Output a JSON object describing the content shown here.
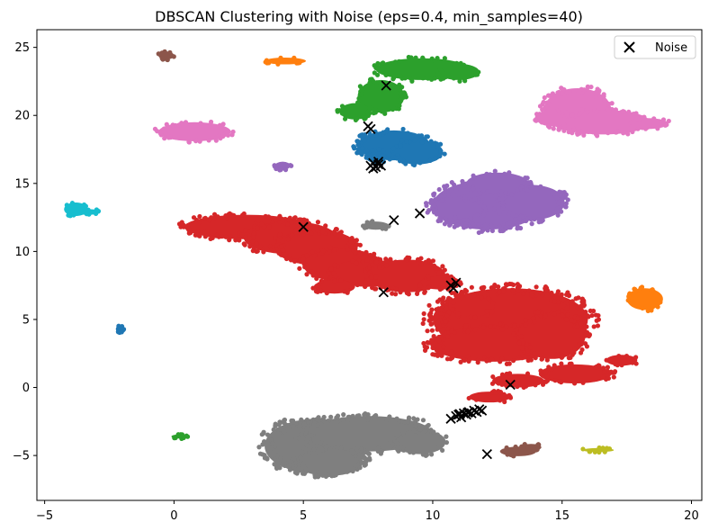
{
  "chart_data": {
    "type": "scatter",
    "title": "DBSCAN Clustering with Noise (eps=0.4, min_samples=40)",
    "xlabel": "",
    "ylabel": "",
    "xlim": [
      -5.3,
      20.4
    ],
    "ylim": [
      -8.3,
      26.3
    ],
    "x_ticks": [
      -5,
      0,
      5,
      10,
      15,
      20
    ],
    "y_ticks": [
      -5,
      0,
      5,
      10,
      15,
      20,
      25
    ],
    "grid": false,
    "legend": {
      "position": "top-right",
      "entries": [
        "Noise"
      ]
    },
    "colors": {
      "tab_blue": "#1f77b4",
      "tab_orange": "#ff7f0e",
      "tab_green": "#2ca02c",
      "tab_red": "#d62728",
      "tab_purple": "#9467bd",
      "tab_brown": "#8c564b",
      "tab_pink": "#e377c2",
      "tab_gray": "#7f7f7f",
      "tab_olive": "#bcbd22",
      "tab_cyan": "#17becf",
      "noise": "#000000"
    },
    "clusters": [
      {
        "color": "#1f77b4",
        "regions": [
          {
            "cx": 8.5,
            "cy": 17.8,
            "rx": 1.4,
            "ry": 1.1
          },
          {
            "cx": 9.4,
            "cy": 17.3,
            "rx": 1.0,
            "ry": 0.9
          },
          {
            "cx": 7.8,
            "cy": 17.0,
            "rx": 0.4,
            "ry": 0.5
          },
          {
            "cx": -2.1,
            "cy": 4.3,
            "rx": 0.15,
            "ry": 0.25
          }
        ]
      },
      {
        "color": "#ff7f0e",
        "regions": [
          {
            "cx": 4.3,
            "cy": 24.0,
            "rx": 0.8,
            "ry": 0.25
          },
          {
            "cx": 18.2,
            "cy": 6.5,
            "rx": 0.7,
            "ry": 0.8
          }
        ]
      },
      {
        "color": "#2ca02c",
        "regions": [
          {
            "cx": 9.6,
            "cy": 23.4,
            "rx": 1.8,
            "ry": 0.8
          },
          {
            "cx": 11.0,
            "cy": 23.2,
            "rx": 0.8,
            "ry": 0.6
          },
          {
            "cx": 8.0,
            "cy": 21.4,
            "rx": 0.9,
            "ry": 1.2
          },
          {
            "cx": 7.0,
            "cy": 20.3,
            "rx": 0.6,
            "ry": 0.6
          },
          {
            "cx": 0.2,
            "cy": -3.6,
            "rx": 0.3,
            "ry": 0.15
          }
        ]
      },
      {
        "color": "#d62728",
        "regions": [
          {
            "cx": 2.8,
            "cy": 11.8,
            "rx": 2.4,
            "ry": 0.9
          },
          {
            "cx": 4.5,
            "cy": 11.0,
            "rx": 1.8,
            "ry": 1.2
          },
          {
            "cx": 5.5,
            "cy": 10.3,
            "rx": 1.6,
            "ry": 1.3
          },
          {
            "cx": 6.5,
            "cy": 9.0,
            "rx": 1.5,
            "ry": 1.2
          },
          {
            "cx": 7.5,
            "cy": 8.4,
            "rx": 1.5,
            "ry": 1.0
          },
          {
            "cx": 9.0,
            "cy": 8.2,
            "rx": 1.5,
            "ry": 1.2
          },
          {
            "cx": 10.3,
            "cy": 7.7,
            "rx": 0.8,
            "ry": 0.5
          },
          {
            "cx": 6.2,
            "cy": 7.4,
            "rx": 0.8,
            "ry": 0.5
          },
          {
            "cx": 13.0,
            "cy": 5.0,
            "rx": 3.0,
            "ry": 2.3
          },
          {
            "cx": 12.4,
            "cy": 3.2,
            "rx": 2.5,
            "ry": 1.3
          },
          {
            "cx": 14.6,
            "cy": 3.8,
            "rx": 1.3,
            "ry": 1.7
          },
          {
            "cx": 11.5,
            "cy": 6.0,
            "rx": 0.9,
            "ry": 0.8
          },
          {
            "cx": 15.5,
            "cy": 1.0,
            "rx": 1.4,
            "ry": 0.7
          },
          {
            "cx": 17.3,
            "cy": 2.0,
            "rx": 0.6,
            "ry": 0.4
          },
          {
            "cx": 13.3,
            "cy": 0.5,
            "rx": 1.0,
            "ry": 0.5
          },
          {
            "cx": 12.2,
            "cy": -0.7,
            "rx": 0.8,
            "ry": 0.4
          }
        ]
      },
      {
        "color": "#9467bd",
        "regions": [
          {
            "cx": 12.1,
            "cy": 13.4,
            "rx": 2.1,
            "ry": 1.8
          },
          {
            "cx": 13.8,
            "cy": 13.6,
            "rx": 1.3,
            "ry": 1.3
          },
          {
            "cx": 11.0,
            "cy": 13.2,
            "rx": 1.1,
            "ry": 0.8
          },
          {
            "cx": 12.5,
            "cy": 15.0,
            "rx": 1.2,
            "ry": 0.8
          },
          {
            "cx": 4.2,
            "cy": 16.3,
            "rx": 0.3,
            "ry": 0.3
          }
        ]
      },
      {
        "color": "#8c564b",
        "regions": [
          {
            "cx": -0.3,
            "cy": 24.4,
            "rx": 0.3,
            "ry": 0.3
          },
          {
            "cx": 13.3,
            "cy": -4.7,
            "rx": 0.7,
            "ry": 0.35
          },
          {
            "cx": 13.8,
            "cy": -4.4,
            "rx": 0.4,
            "ry": 0.25
          }
        ]
      },
      {
        "color": "#e377c2",
        "regions": [
          {
            "cx": 0.8,
            "cy": 18.8,
            "rx": 1.4,
            "ry": 0.7
          },
          {
            "cx": 15.6,
            "cy": 20.4,
            "rx": 1.3,
            "ry": 1.6
          },
          {
            "cx": 16.6,
            "cy": 19.5,
            "rx": 1.8,
            "ry": 0.9
          },
          {
            "cx": 18.3,
            "cy": 19.4,
            "rx": 0.8,
            "ry": 0.4
          },
          {
            "cx": 14.6,
            "cy": 19.8,
            "rx": 0.6,
            "ry": 0.6
          }
        ]
      },
      {
        "color": "#7f7f7f",
        "regions": [
          {
            "cx": 7.8,
            "cy": 11.9,
            "rx": 0.5,
            "ry": 0.3
          },
          {
            "cx": 5.5,
            "cy": -4.3,
            "rx": 2.0,
            "ry": 2.0
          },
          {
            "cx": 7.5,
            "cy": -3.4,
            "rx": 2.5,
            "ry": 1.3
          },
          {
            "cx": 9.5,
            "cy": -4.0,
            "rx": 1.0,
            "ry": 0.9
          },
          {
            "cx": 6.0,
            "cy": -5.5,
            "rx": 1.3,
            "ry": 1.0
          }
        ]
      },
      {
        "color": "#bcbd22",
        "regions": [
          {
            "cx": 16.4,
            "cy": -4.6,
            "rx": 0.6,
            "ry": 0.15
          }
        ]
      },
      {
        "color": "#17becf",
        "regions": [
          {
            "cx": -3.8,
            "cy": 13.1,
            "rx": 0.45,
            "ry": 0.5
          },
          {
            "cx": -3.2,
            "cy": 12.9,
            "rx": 0.3,
            "ry": 0.2
          }
        ]
      }
    ],
    "noise_points": [
      [
        8.2,
        22.2
      ],
      [
        7.5,
        19.2
      ],
      [
        7.6,
        19.0
      ],
      [
        7.6,
        16.3
      ],
      [
        7.7,
        16.5
      ],
      [
        7.8,
        16.2
      ],
      [
        7.9,
        16.4
      ],
      [
        8.0,
        16.3
      ],
      [
        7.7,
        16.1
      ],
      [
        7.9,
        16.6
      ],
      [
        5.0,
        11.8
      ],
      [
        8.5,
        12.3
      ],
      [
        9.5,
        12.8
      ],
      [
        8.1,
        7.0
      ],
      [
        10.7,
        7.5
      ],
      [
        10.9,
        7.7
      ],
      [
        10.8,
        7.3
      ],
      [
        13.0,
        0.2
      ],
      [
        10.7,
        -2.3
      ],
      [
        10.9,
        -2.1
      ],
      [
        11.0,
        -2.0
      ],
      [
        11.1,
        -2.2
      ],
      [
        11.2,
        -1.9
      ],
      [
        11.3,
        -2.0
      ],
      [
        11.4,
        -1.8
      ],
      [
        11.5,
        -1.9
      ],
      [
        11.6,
        -1.7
      ],
      [
        11.7,
        -1.8
      ],
      [
        11.8,
        -1.6
      ],
      [
        11.9,
        -1.7
      ],
      [
        11.05,
        -1.95
      ],
      [
        11.35,
        -1.85
      ],
      [
        12.1,
        -4.9
      ]
    ]
  }
}
